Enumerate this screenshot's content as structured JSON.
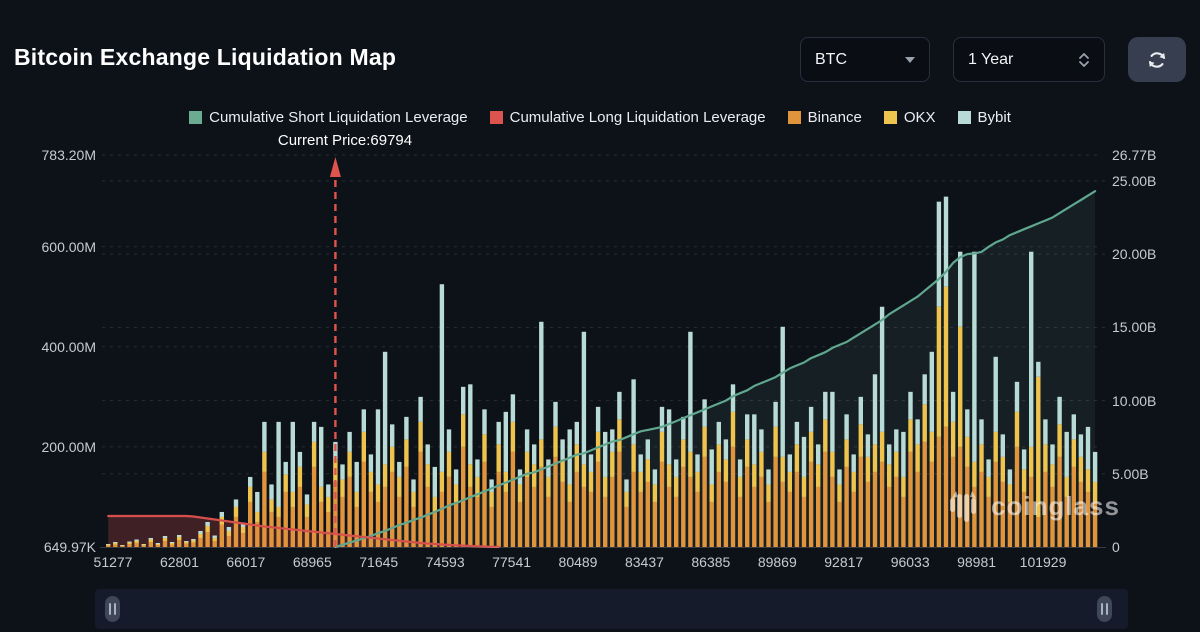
{
  "header": {
    "title": "Bitcoin Exchange Liquidation Map",
    "coin_select": "BTC",
    "range_select": "1 Year"
  },
  "legend": [
    {
      "label": "Cumulative Short Liquidation Leverage",
      "color": "#6aab92"
    },
    {
      "label": "Cumulative Long Liquidation Leverage",
      "color": "#dd5350"
    },
    {
      "label": "Binance",
      "color": "#e0953c"
    },
    {
      "label": "OKX",
      "color": "#eec44e"
    },
    {
      "label": "Bybit",
      "color": "#b9dbd6"
    }
  ],
  "watermark": {
    "text": "coinglass"
  },
  "chart_data": {
    "type": "bar",
    "stacked": true,
    "title": "Bitcoin Exchange Liquidation Map",
    "annotation": {
      "text": "Current Price:69794",
      "x_index": 32
    },
    "x_labels": [
      "51277",
      "62801",
      "66017",
      "68965",
      "71645",
      "74593",
      "77541",
      "80489",
      "83437",
      "86385",
      "89869",
      "92817",
      "96033",
      "98981",
      "101929"
    ],
    "left_axis": {
      "unit": "M",
      "max": 783.2,
      "ticks": [
        {
          "label": "783.20M",
          "value": 783.2
        },
        {
          "label": "600.00M",
          "value": 600
        },
        {
          "label": "400.00M",
          "value": 400
        },
        {
          "label": "200.00M",
          "value": 200
        },
        {
          "label": "649.97K",
          "value": 0.65
        }
      ]
    },
    "right_axis": {
      "unit": "B",
      "max": 26.77,
      "ticks": [
        {
          "label": "26.77B",
          "value": 26.77
        },
        {
          "label": "25.00B",
          "value": 25
        },
        {
          "label": "20.00B",
          "value": 20
        },
        {
          "label": "15.00B",
          "value": 15
        },
        {
          "label": "10.00B",
          "value": 10
        },
        {
          "label": "5.00B",
          "value": 5
        },
        {
          "label": "0",
          "value": 0
        }
      ]
    },
    "bar_series": [
      {
        "name": "Binance",
        "color": "#e0953c"
      },
      {
        "name": "OKX",
        "color": "#eec44e"
      },
      {
        "name": "Bybit",
        "color": "#b9dbd6"
      }
    ],
    "bars_unit": "M",
    "bars": [
      [
        3,
        2,
        1
      ],
      [
        5,
        3,
        2
      ],
      [
        2,
        1,
        1
      ],
      [
        6,
        3,
        2
      ],
      [
        8,
        4,
        3
      ],
      [
        3,
        2,
        1
      ],
      [
        10,
        5,
        3
      ],
      [
        4,
        2,
        2
      ],
      [
        12,
        6,
        4
      ],
      [
        5,
        3,
        2
      ],
      [
        14,
        6,
        4
      ],
      [
        7,
        3,
        2
      ],
      [
        9,
        4,
        3
      ],
      [
        18,
        8,
        6
      ],
      [
        30,
        12,
        8
      ],
      [
        12,
        6,
        5
      ],
      [
        45,
        15,
        10
      ],
      [
        22,
        10,
        8
      ],
      [
        60,
        20,
        15
      ],
      [
        28,
        12,
        9
      ],
      [
        90,
        30,
        20
      ],
      [
        50,
        20,
        40
      ],
      [
        150,
        40,
        60
      ],
      [
        70,
        25,
        30
      ],
      [
        60,
        20,
        170
      ],
      [
        110,
        35,
        25
      ],
      [
        80,
        30,
        140
      ],
      [
        120,
        40,
        30
      ],
      [
        60,
        25,
        20
      ],
      [
        160,
        50,
        40
      ],
      [
        90,
        30,
        120
      ],
      [
        70,
        30,
        25
      ],
      [
        130,
        45,
        35
      ],
      [
        100,
        35,
        30
      ],
      [
        140,
        50,
        40
      ],
      [
        80,
        30,
        60
      ],
      [
        170,
        60,
        45
      ],
      [
        110,
        40,
        35
      ],
      [
        90,
        35,
        150
      ],
      [
        120,
        45,
        225
      ],
      [
        150,
        50,
        45
      ],
      [
        100,
        40,
        30
      ],
      [
        160,
        55,
        45
      ],
      [
        80,
        30,
        25
      ],
      [
        190,
        60,
        50
      ],
      [
        120,
        45,
        40
      ],
      [
        70,
        30,
        60
      ],
      [
        110,
        40,
        375
      ],
      [
        140,
        50,
        45
      ],
      [
        90,
        35,
        30
      ],
      [
        200,
        65,
        55
      ],
      [
        120,
        45,
        160
      ],
      [
        100,
        40,
        35
      ],
      [
        170,
        55,
        50
      ],
      [
        80,
        30,
        25
      ],
      [
        150,
        55,
        45
      ],
      [
        110,
        40,
        120
      ],
      [
        190,
        60,
        55
      ],
      [
        90,
        35,
        30
      ],
      [
        140,
        50,
        45
      ],
      [
        120,
        45,
        40
      ],
      [
        160,
        55,
        235
      ],
      [
        100,
        40,
        35
      ],
      [
        180,
        60,
        50
      ],
      [
        130,
        45,
        40
      ],
      [
        90,
        35,
        110
      ],
      [
        150,
        55,
        45
      ],
      [
        120,
        45,
        265
      ],
      [
        110,
        40,
        35
      ],
      [
        170,
        60,
        50
      ],
      [
        100,
        40,
        90
      ],
      [
        140,
        50,
        45
      ],
      [
        190,
        65,
        55
      ],
      [
        80,
        30,
        25
      ],
      [
        150,
        55,
        130
      ],
      [
        110,
        40,
        35
      ],
      [
        130,
        45,
        40
      ],
      [
        90,
        35,
        30
      ],
      [
        170,
        60,
        50
      ],
      [
        120,
        45,
        110
      ],
      [
        100,
        40,
        35
      ],
      [
        160,
        55,
        45
      ],
      [
        140,
        50,
        240
      ],
      [
        110,
        40,
        35
      ],
      [
        180,
        60,
        55
      ],
      [
        90,
        35,
        70
      ],
      [
        150,
        55,
        45
      ],
      [
        130,
        45,
        40
      ],
      [
        200,
        70,
        55
      ],
      [
        100,
        40,
        35
      ],
      [
        160,
        55,
        50
      ],
      [
        120,
        45,
        100
      ],
      [
        140,
        50,
        45
      ],
      [
        90,
        35,
        30
      ],
      [
        180,
        60,
        50
      ],
      [
        130,
        50,
        260
      ],
      [
        110,
        40,
        35
      ],
      [
        150,
        55,
        45
      ],
      [
        100,
        40,
        80
      ],
      [
        170,
        60,
        50
      ],
      [
        120,
        45,
        40
      ],
      [
        190,
        65,
        55
      ],
      [
        140,
        50,
        120
      ],
      [
        90,
        35,
        30
      ],
      [
        160,
        55,
        50
      ],
      [
        110,
        40,
        35
      ],
      [
        180,
        65,
        55
      ],
      [
        130,
        50,
        45
      ],
      [
        150,
        55,
        140
      ],
      [
        170,
        60,
        250
      ],
      [
        120,
        45,
        40
      ],
      [
        140,
        50,
        45
      ],
      [
        100,
        40,
        90
      ],
      [
        190,
        65,
        55
      ],
      [
        150,
        55,
        50
      ],
      [
        210,
        75,
        60
      ],
      [
        170,
        60,
        160
      ],
      [
        220,
        260,
        210
      ],
      [
        240,
        280,
        180
      ],
      [
        180,
        70,
        60
      ],
      [
        200,
        240,
        150
      ],
      [
        160,
        60,
        55
      ],
      [
        120,
        50,
        420
      ],
      [
        150,
        55,
        50
      ],
      [
        100,
        40,
        35
      ],
      [
        170,
        60,
        150
      ],
      [
        130,
        50,
        45
      ],
      [
        90,
        35,
        30
      ],
      [
        200,
        70,
        60
      ],
      [
        110,
        45,
        40
      ],
      [
        140,
        60,
        390
      ],
      [
        60,
        280,
        30
      ],
      [
        150,
        55,
        50
      ],
      [
        120,
        45,
        40
      ],
      [
        180,
        65,
        55
      ],
      [
        100,
        40,
        90
      ],
      [
        160,
        55,
        50
      ],
      [
        130,
        50,
        45
      ],
      [
        110,
        45,
        85
      ],
      [
        90,
        40,
        60
      ]
    ],
    "lines": [
      {
        "name": "Cumulative Short Liquidation Leverage",
        "color": "#5fa78f",
        "fill": "rgba(140,200,180,0.08)",
        "axis": "right",
        "unit": "B",
        "start_index": 32,
        "values": [
          0,
          0.15,
          0.3,
          0.45,
          0.6,
          0.75,
          0.95,
          1.1,
          1.3,
          1.5,
          1.65,
          1.85,
          2.0,
          2.2,
          2.4,
          2.6,
          2.85,
          3.0,
          3.2,
          3.4,
          3.6,
          3.8,
          4.0,
          4.2,
          4.4,
          4.6,
          4.8,
          5.0,
          5.1,
          5.3,
          5.5,
          5.7,
          5.9,
          6.1,
          6.3,
          6.4,
          6.6,
          6.8,
          7.0,
          7.2,
          7.3,
          7.5,
          7.7,
          7.9,
          8.0,
          8.1,
          8.2,
          8.4,
          8.6,
          8.8,
          9.0,
          9.2,
          9.4,
          9.6,
          9.8,
          10.0,
          10.3,
          10.5,
          10.7,
          11.0,
          11.2,
          11.4,
          11.6,
          11.9,
          12.2,
          12.4,
          12.6,
          12.9,
          13.1,
          13.3,
          13.6,
          13.8,
          14.0,
          14.3,
          14.6,
          14.9,
          15.2,
          15.5,
          15.9,
          16.2,
          16.5,
          16.8,
          17.1,
          17.5,
          17.9,
          18.3,
          18.8,
          19.4,
          19.8,
          20.0,
          20.05,
          20.15,
          20.5,
          20.8,
          21.0,
          21.3,
          21.5,
          21.7,
          21.9,
          22.1,
          22.3,
          22.5,
          22.8,
          23.1,
          23.4,
          23.7,
          24.0,
          24.3
        ]
      },
      {
        "name": "Cumulative Long Liquidation Leverage",
        "color": "#d5504c",
        "fill": "rgba(216,79,75,0.25)",
        "axis": "left",
        "unit": "M",
        "start_index": 0,
        "values": [
          62,
          62,
          62,
          62,
          62,
          62,
          62,
          62,
          62,
          62,
          62,
          62,
          61,
          59,
          57,
          55,
          53,
          51,
          49,
          47,
          45,
          43,
          41,
          39.5,
          38,
          36.5,
          35,
          33.5,
          32,
          30.5,
          29,
          27.5,
          26,
          24.5,
          23,
          21.5,
          20,
          18.5,
          17,
          15.5,
          14,
          12.5,
          11,
          9.5,
          8,
          7,
          6,
          5,
          4.2,
          3.4,
          2.7,
          2.0,
          1.4,
          0.9,
          0.4,
          0.1
        ]
      }
    ],
    "grid": {
      "dashed": true,
      "color": "rgba(255,255,255,0.12)"
    },
    "legend_position": "top"
  }
}
